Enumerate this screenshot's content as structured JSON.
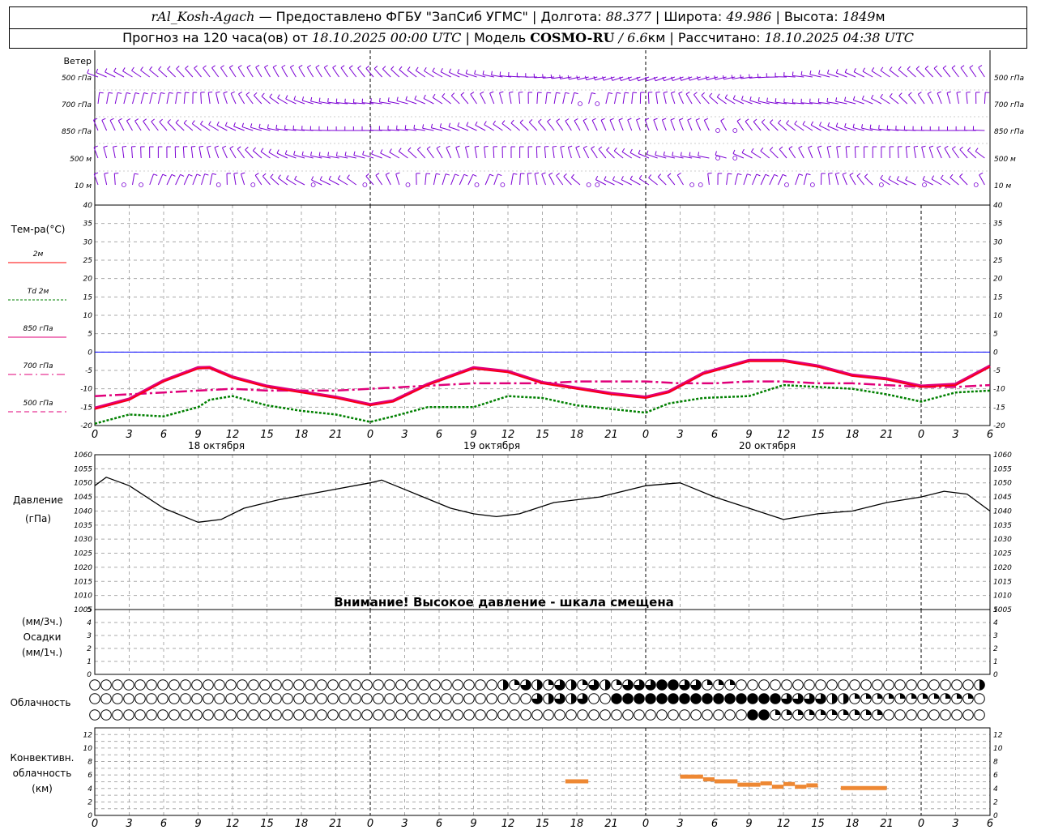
{
  "header": {
    "station": "rAl_Kosh-Agach",
    "provider": " — Предоставлено ФГБУ \"ЗапСиб УГМС\" | Долгота: ",
    "lon": "88.377",
    "lat_label": " | Широта: ",
    "lat": "49.986",
    "alt_label": " | Высота: ",
    "alt": "1849",
    "alt_unit": "м",
    "forecast_label": "Прогноз на 120 часа(ов) от ",
    "forecast_start": "18.10.2025 00:00 UTC",
    "model_label": " | Модель ",
    "model": "COSMO-RU",
    "res": " / 6.6",
    "res_unit": "км",
    "calc_label": " | Рассчитано: ",
    "calc_time": "18.10.2025 04:38 UTC"
  },
  "labels": {
    "wind": "Ветер",
    "levels": [
      "500 гПа",
      "700 гПа",
      "850 гПа",
      "500 м",
      "10  м"
    ],
    "temp_title": "Тем-ра(°C)",
    "legend": [
      "2м",
      "Td  2м",
      "850 гПа",
      "700 гПа",
      "500 гПа"
    ],
    "pressure": "Давление",
    "pressure_unit": "(гПа)",
    "warning": "Внимание! Высокое давление - шкала смещена",
    "precip_unit1": "(мм/3ч.)",
    "precip": "Осадки",
    "precip_unit2": "(мм/1ч.)",
    "cloud": "Облачность",
    "conv1": "Конвективн.",
    "conv2": "облачность",
    "conv3": "(км)"
  },
  "time_axis": {
    "hour_labels": [
      "0",
      "3",
      "6",
      "9",
      "12",
      "15",
      "18",
      "21",
      "0",
      "3",
      "6",
      "9",
      "12",
      "15",
      "18",
      "21",
      "0",
      "3",
      "6",
      "9",
      "12",
      "15",
      "18",
      "21",
      "0",
      "3",
      "6"
    ],
    "days": [
      "18 октября",
      "19 октября",
      "20 октября"
    ]
  },
  "colors": {
    "t2m": "#ff0000",
    "td2m": "#008000",
    "t850": "#e0007a",
    "t700": "#e0007a",
    "t500": "#e0007a",
    "wind": "#7b00d4",
    "conv": "#ee8833",
    "zero_line": "#0000ff"
  },
  "chart_data": [
    {
      "type": "line",
      "title": "Тем-ра(°C)",
      "x_unit": "hours from 18.10.2025 00:00 UTC",
      "ylim": [
        -20,
        40
      ],
      "series": [
        {
          "name": "2м",
          "x": [
            0,
            3,
            6,
            9,
            10,
            12,
            15,
            18,
            21,
            24,
            26,
            29,
            33,
            36,
            39,
            42,
            45,
            48,
            50,
            53,
            57,
            60,
            63,
            66,
            69,
            72,
            75,
            78
          ],
          "values": [
            -15.5,
            -13,
            -8,
            -4.5,
            -4.3,
            -7,
            -9.5,
            -11,
            -12.5,
            -14.5,
            -13.5,
            -9,
            -4.5,
            -5.5,
            -8.5,
            -10,
            -11.5,
            -12.5,
            -11,
            -6,
            -2.5,
            -2.5,
            -4,
            -6.5,
            -7.5,
            -9.5,
            -9,
            -4
          ]
        },
        {
          "name": "Td  2м",
          "x": [
            0,
            3,
            6,
            9,
            10,
            12,
            15,
            18,
            21,
            24,
            26,
            29,
            33,
            36,
            39,
            42,
            45,
            48,
            50,
            53,
            57,
            60,
            63,
            66,
            69,
            72,
            75,
            78
          ],
          "values": [
            -19.5,
            -17,
            -17.5,
            -15,
            -13,
            -12,
            -14.5,
            -16,
            -17,
            -19,
            -17.5,
            -15,
            -15,
            -12,
            -12.5,
            -14.5,
            -15.5,
            -16.5,
            -14,
            -12.5,
            -12,
            -9,
            -9.5,
            -10,
            -11.5,
            -13.5,
            -11,
            -10.5
          ]
        },
        {
          "name": "850 гПа",
          "x": [
            0,
            3,
            6,
            9,
            10,
            12,
            15,
            18,
            21,
            24,
            26,
            29,
            33,
            36,
            39,
            42,
            45,
            48,
            50,
            53,
            57,
            60,
            63,
            66,
            69,
            72,
            75,
            78
          ],
          "values": [
            -15.3,
            -12.8,
            -7.8,
            -4.3,
            -4.2,
            -6.8,
            -9.3,
            -10.8,
            -12.3,
            -14.3,
            -13.3,
            -8.8,
            -4.3,
            -5.3,
            -8.3,
            -9.8,
            -11.3,
            -12.3,
            -10.8,
            -5.8,
            -2.3,
            -2.3,
            -3.8,
            -6.3,
            -7.3,
            -9.3,
            -8.8,
            -3.8
          ]
        },
        {
          "name": "700 гПа",
          "x": [
            0,
            3,
            6,
            9,
            12,
            15,
            18,
            21,
            24,
            27,
            30,
            33,
            36,
            39,
            42,
            45,
            48,
            51,
            54,
            57,
            60,
            63,
            66,
            69,
            72,
            75,
            78
          ],
          "values": [
            -12,
            -11.5,
            -11,
            -10.5,
            -10,
            -10.5,
            -10.5,
            -10.5,
            -10,
            -9.5,
            -9,
            -8.5,
            -8.5,
            -8.5,
            -8,
            -8,
            -8,
            -8.5,
            -8.5,
            -8,
            -8,
            -8.5,
            -8.5,
            -9,
            -9.5,
            -9.5,
            -9
          ]
        },
        {
          "name": "500 гПа",
          "x": [],
          "values": []
        }
      ]
    },
    {
      "type": "line",
      "title": "Давление",
      "x_unit": "hours from 18.10.2025 00:00 UTC",
      "ylim": [
        1005,
        1060
      ],
      "series": [
        {
          "name": "Давление",
          "x": [
            0,
            1,
            3,
            6,
            9,
            11,
            13,
            16,
            20,
            24,
            25,
            28,
            31,
            33,
            35,
            37,
            40,
            44,
            48,
            51,
            54,
            57,
            60,
            63,
            66,
            69,
            72,
            74,
            76,
            78
          ],
          "values": [
            1049,
            1052,
            1049,
            1041,
            1036,
            1037,
            1041,
            1044,
            1047,
            1050,
            1051,
            1046,
            1041,
            1039,
            1038,
            1039,
            1043,
            1045,
            1049,
            1050,
            1045,
            1041,
            1037,
            1039,
            1040,
            1043,
            1045,
            1047,
            1046,
            1040
          ]
        }
      ]
    },
    {
      "type": "bar",
      "title": "Конвективн. облачность",
      "x_unit": "hours from 18.10.2025 00:00 UTC",
      "ylim": [
        0,
        13
      ],
      "series": [
        {
          "name": "Конвективная облачность (км)",
          "segments": [
            [
              41,
              43,
              5
            ],
            [
              51,
              53,
              5.7
            ],
            [
              53,
              54,
              5.3
            ],
            [
              54,
              56,
              5
            ],
            [
              56,
              58,
              4.5
            ],
            [
              58,
              59,
              4.7
            ],
            [
              59,
              60,
              4.2
            ],
            [
              60,
              61,
              4.6
            ],
            [
              61,
              62,
              4.2
            ],
            [
              62,
              63,
              4.4
            ],
            [
              65,
              69,
              4
            ]
          ]
        }
      ]
    }
  ]
}
